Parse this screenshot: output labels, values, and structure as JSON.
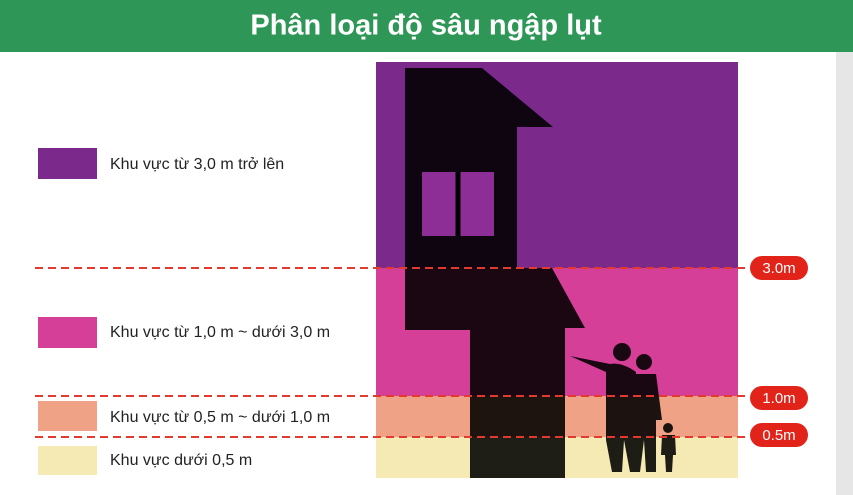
{
  "header": {
    "title": "Phân loại độ sâu ngập lụt"
  },
  "legend": {
    "items": [
      {
        "label": "Khu vực từ 3,0 m trở lên"
      },
      {
        "label": "Khu vực từ 1,0 m ~ dưới 3,0 m"
      },
      {
        "label": "Khu vực từ 0,5 m ~ dưới 1,0 m"
      },
      {
        "label": "Khu vực dưới 0,5 m"
      }
    ]
  },
  "depth_markers": [
    {
      "label": "3.0m"
    },
    {
      "label": "1.0m"
    },
    {
      "label": "0.5m"
    }
  ]
}
